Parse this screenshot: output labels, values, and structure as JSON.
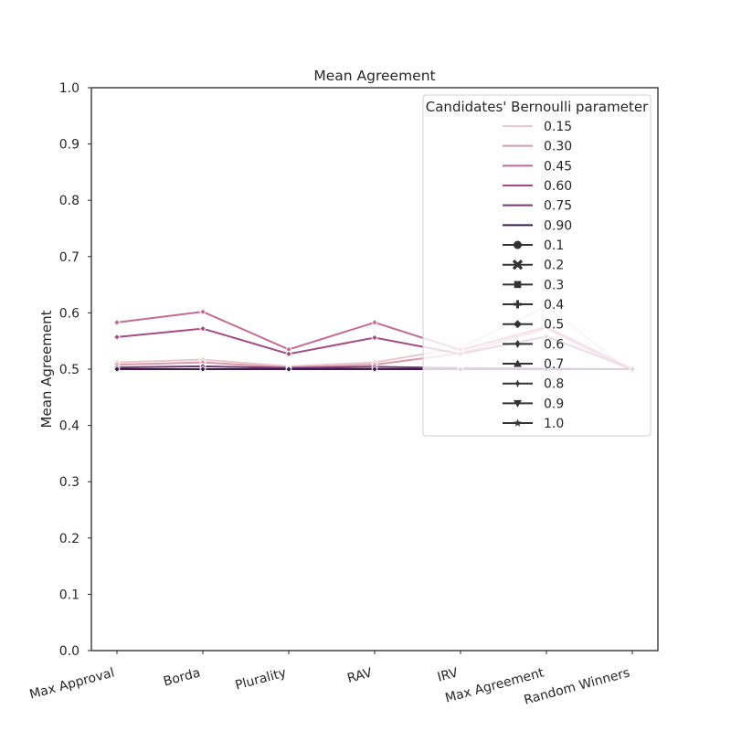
{
  "chart_data": {
    "type": "line",
    "title": "Mean Agreement",
    "xlabel": "",
    "ylabel": "Mean Agreement",
    "ylim": [
      0.0,
      1.0
    ],
    "yticks": [
      "0.0",
      "0.1",
      "0.2",
      "0.3",
      "0.4",
      "0.5",
      "0.6",
      "0.7",
      "0.8",
      "0.9",
      "1.0"
    ],
    "categories": [
      "Max Approval",
      "Borda",
      "Plurality",
      "RAV",
      "IRV",
      "Max Agreement",
      "Random Winners"
    ],
    "grid": false,
    "legend": {
      "title": "Candidates' Bernoulli parameter",
      "placement": "top-right",
      "hue_entries": [
        {
          "label": "0.15",
          "color": "#ebc7cf"
        },
        {
          "label": "0.30",
          "color": "#db98ab"
        },
        {
          "label": "0.45",
          "color": "#c36b93"
        },
        {
          "label": "0.60",
          "color": "#a24b87"
        },
        {
          "label": "0.75",
          "color": "#733773"
        },
        {
          "label": "0.90",
          "color": "#3b1e4b"
        }
      ],
      "marker_entries": [
        {
          "label": "0.1",
          "marker": "circle"
        },
        {
          "label": "0.2",
          "marker": "x"
        },
        {
          "label": "0.3",
          "marker": "square"
        },
        {
          "label": "0.4",
          "marker": "plus"
        },
        {
          "label": "0.5",
          "marker": "diamond"
        },
        {
          "label": "0.6",
          "marker": "thin-diamond"
        },
        {
          "label": "0.7",
          "marker": "triangle-up"
        },
        {
          "label": "0.8",
          "marker": "star4"
        },
        {
          "label": "0.9",
          "marker": "triangle-down"
        },
        {
          "label": "1.0",
          "marker": "star"
        }
      ]
    },
    "series": [
      {
        "name": "0.15",
        "color": "#ebc7cf",
        "values": [
          0.512,
          0.517,
          0.505,
          0.512,
          0.538,
          0.612,
          0.493
        ]
      },
      {
        "name": "0.30",
        "color": "#db98ab",
        "values": [
          0.508,
          0.512,
          0.503,
          0.508,
          0.528,
          0.572,
          0.496
        ]
      },
      {
        "name": "0.45",
        "color": "#c36b93",
        "values": [
          0.583,
          0.602,
          0.535,
          0.583,
          0.534,
          0.575,
          0.5
        ]
      },
      {
        "name": "0.60",
        "color": "#a24b87",
        "values": [
          0.557,
          0.572,
          0.527,
          0.556,
          0.527,
          0.558,
          0.5
        ]
      },
      {
        "name": "0.75",
        "color": "#733773",
        "values": [
          0.503,
          0.505,
          0.502,
          0.504,
          0.502,
          0.501,
          0.5
        ]
      },
      {
        "name": "0.90",
        "color": "#3b1e4b",
        "values": [
          0.5,
          0.5,
          0.5,
          0.5,
          0.5,
          0.5,
          0.5
        ]
      }
    ]
  }
}
